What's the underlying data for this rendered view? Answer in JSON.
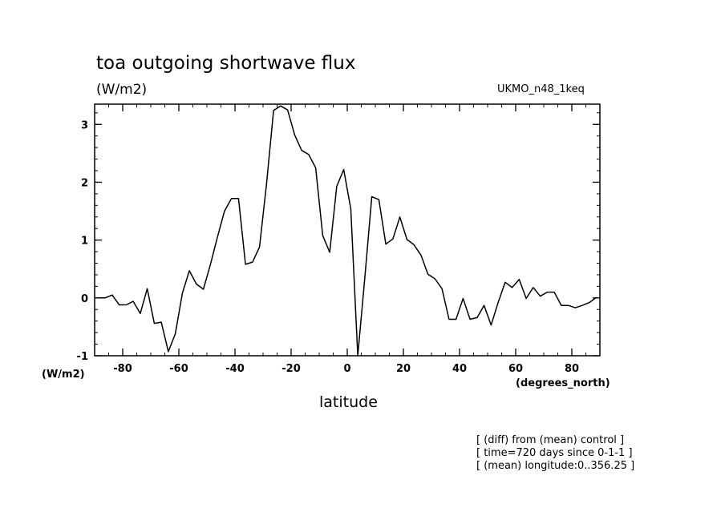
{
  "chart_data": {
    "type": "line",
    "title": "toa outgoing shortwave flux",
    "units": "(W/m2)",
    "model": "UKMO_n48_1keq",
    "yunits_label": "(W/m2)",
    "xlabel": "latitude",
    "xunits": "(degrees_north)",
    "xlim": [
      -90,
      90
    ],
    "ylim": [
      -1,
      3.35
    ],
    "xticks": [
      -80,
      -60,
      -40,
      -20,
      0,
      20,
      40,
      60,
      80
    ],
    "xtick_labels": [
      "-80",
      "-60",
      "-40",
      "-20",
      "0",
      "20",
      "40",
      "60",
      "80"
    ],
    "yticks": [
      -1,
      0,
      1,
      2,
      3
    ],
    "ytick_labels": [
      "-1",
      "0",
      "1",
      "2",
      "3"
    ],
    "grid": false,
    "series": [
      {
        "x": [
          -88.75,
          -86.25,
          -83.75,
          -81.25,
          -78.75,
          -76.25,
          -73.75,
          -71.25,
          -68.75,
          -66.25,
          -63.75,
          -61.25,
          -58.75,
          -56.25,
          -53.75,
          -51.25,
          -48.75,
          -46.25,
          -43.75,
          -41.25,
          -38.75,
          -36.25,
          -33.75,
          -31.25,
          -28.75,
          -26.25,
          -23.75,
          -21.25,
          -18.75,
          -16.25,
          -13.75,
          -11.25,
          -8.75,
          -6.25,
          -3.75,
          -1.25,
          1.25,
          3.75,
          6.25,
          8.75,
          11.25,
          13.75,
          16.25,
          18.75,
          21.25,
          23.75,
          26.25,
          28.75,
          31.25,
          33.75,
          36.25,
          38.75,
          41.25,
          43.75,
          46.25,
          48.75,
          51.25,
          53.75,
          56.25,
          58.75,
          61.25,
          63.75,
          66.25,
          68.75,
          71.25,
          73.75,
          76.25,
          78.75,
          81.25,
          83.75,
          86.25,
          88.75
        ],
        "y": [
          0.0,
          0.0,
          0.05,
          -0.12,
          -0.12,
          -0.06,
          -0.27,
          0.16,
          -0.44,
          -0.42,
          -0.93,
          -0.62,
          0.08,
          0.47,
          0.24,
          0.15,
          0.58,
          1.05,
          1.5,
          1.72,
          1.72,
          0.58,
          0.62,
          0.88,
          1.98,
          3.24,
          3.32,
          3.25,
          2.82,
          2.55,
          2.48,
          2.25,
          1.08,
          0.79,
          1.93,
          2.22,
          1.54,
          -1.0,
          0.35,
          1.75,
          1.7,
          0.93,
          1.02,
          1.4,
          1.01,
          0.92,
          0.74,
          0.41,
          0.33,
          0.16,
          -0.37,
          -0.37,
          -0.01,
          -0.37,
          -0.34,
          -0.13,
          -0.47,
          -0.08,
          0.27,
          0.18,
          0.32,
          -0.01,
          0.18,
          0.03,
          0.1,
          0.1,
          -0.13,
          -0.13,
          -0.17,
          -0.13,
          -0.08,
          0.01
        ]
      }
    ]
  },
  "notes": [
    "[ (diff) from (mean) control ]",
    "[ time=720 days since 0-1-1 ]",
    "[ (mean) longitude:0..356.25 ]"
  ]
}
